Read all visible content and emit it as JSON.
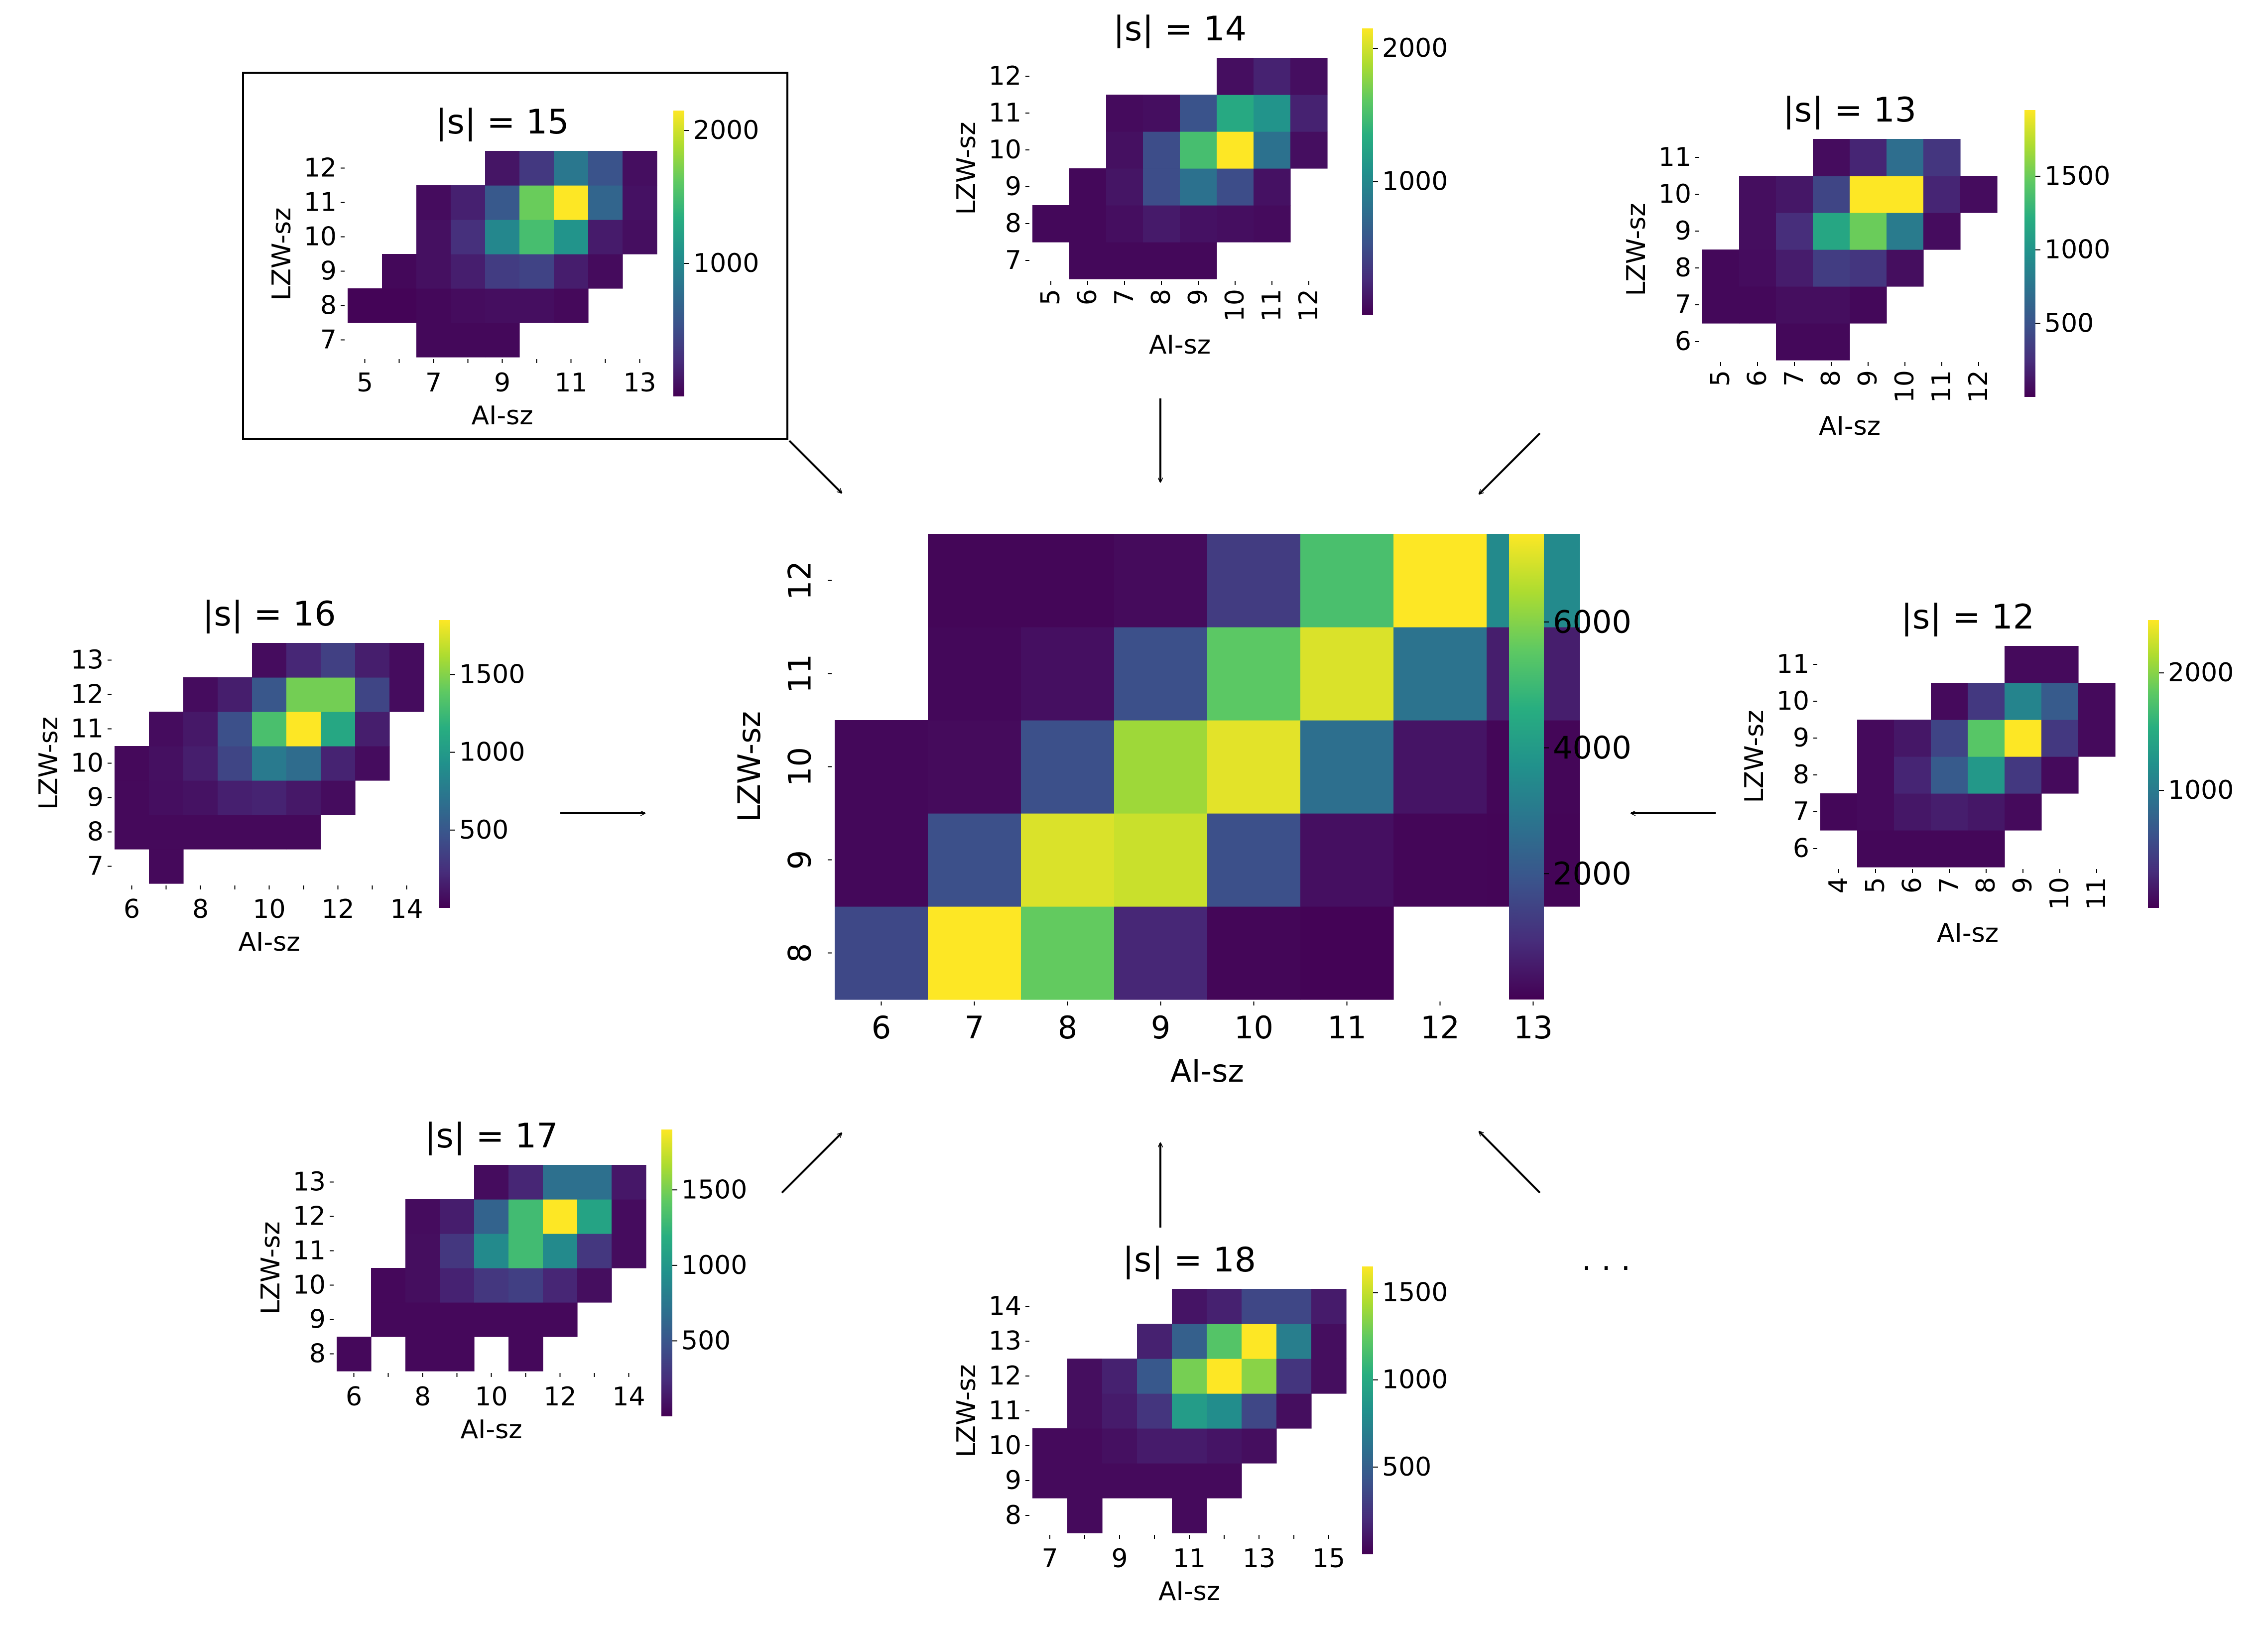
{
  "colors": {
    "low": "#440154",
    "mid": "#21918c",
    "high": "#fde725",
    "arrow": "#000000"
  },
  "ellipsis": ". . .",
  "chart_data": [
    {
      "id": "main",
      "type": "heatmap",
      "title": "",
      "xlabel": "AI-sz",
      "ylabel": "LZW-sz",
      "x_categories": [
        6,
        7,
        8,
        9,
        10,
        11,
        12,
        13
      ],
      "y_categories": [
        8,
        9,
        10,
        11,
        12
      ],
      "colorbar": {
        "vmin": 0,
        "vmax": 7400,
        "ticks": [
          2000,
          4000,
          6000
        ]
      },
      "values": [
        [
          1600,
          7400,
          5600,
          800,
          100,
          50,
          null,
          null
        ],
        [
          150,
          1800,
          7000,
          6800,
          1800,
          300,
          100,
          80
        ],
        [
          150,
          200,
          1800,
          6300,
          7100,
          2700,
          400,
          100
        ],
        [
          null,
          150,
          300,
          1800,
          5500,
          7000,
          2800,
          600
        ],
        [
          null,
          100,
          100,
          200,
          1300,
          5200,
          7400,
          3500
        ]
      ]
    },
    {
      "id": "s15",
      "type": "heatmap",
      "title": "|s| = 15",
      "xlabel": "AI-sz",
      "ylabel": "LZW-sz",
      "x_categories": [
        5,
        6,
        7,
        8,
        9,
        10,
        11,
        12,
        13
      ],
      "x_tick_labels": [
        "5",
        "",
        "7",
        "",
        "9",
        "",
        "11",
        "",
        "13"
      ],
      "y_categories": [
        7,
        8,
        9,
        10,
        11,
        12
      ],
      "colorbar": {
        "vmin": 0,
        "vmax": 2150,
        "ticks": [
          1000,
          2000
        ]
      },
      "values": [
        [
          null,
          null,
          40,
          40,
          40,
          null,
          null,
          null,
          null
        ],
        [
          20,
          20,
          40,
          70,
          80,
          80,
          50,
          null,
          null
        ],
        [
          null,
          40,
          90,
          180,
          380,
          430,
          170,
          60,
          null
        ],
        [
          null,
          null,
          90,
          290,
          990,
          1500,
          1100,
          160,
          80
        ],
        [
          null,
          null,
          70,
          190,
          600,
          1650,
          2150,
          700,
          100
        ],
        [
          null,
          null,
          null,
          null,
          120,
          350,
          850,
          550,
          80
        ]
      ]
    },
    {
      "id": "s14",
      "type": "heatmap",
      "title": "|s| = 14",
      "xlabel": "AI-sz",
      "ylabel": "LZW-sz",
      "x_categories": [
        5,
        6,
        7,
        8,
        9,
        10,
        11,
        12
      ],
      "y_categories": [
        7,
        8,
        9,
        10,
        11,
        12
      ],
      "colorbar": {
        "vmin": 0,
        "vmax": 2150,
        "ticks": [
          1000,
          2000
        ]
      },
      "values": [
        [
          null,
          40,
          40,
          40,
          40,
          null,
          null,
          null
        ],
        [
          40,
          40,
          80,
          150,
          100,
          80,
          60,
          null
        ],
        [
          null,
          40,
          120,
          500,
          800,
          500,
          100,
          null
        ],
        [
          null,
          null,
          90,
          500,
          1500,
          2150,
          800,
          80
        ],
        [
          null,
          null,
          60,
          80,
          550,
          1300,
          1100,
          200
        ],
        [
          null,
          null,
          null,
          null,
          null,
          80,
          200,
          80
        ]
      ]
    },
    {
      "id": "s13",
      "type": "heatmap",
      "title": "|s| = 13",
      "xlabel": "AI-sz",
      "ylabel": "LZW-sz",
      "x_categories": [
        5,
        6,
        7,
        8,
        9,
        10,
        11,
        12
      ],
      "y_categories": [
        6,
        7,
        8,
        9,
        10,
        11
      ],
      "colorbar": {
        "vmin": 0,
        "vmax": 1950,
        "ticks": [
          500,
          1000,
          1500
        ]
      },
      "values": [
        [
          null,
          null,
          40,
          40,
          null,
          null,
          null,
          null
        ],
        [
          40,
          40,
          70,
          70,
          40,
          null,
          null,
          null
        ],
        [
          40,
          60,
          150,
          350,
          300,
          70,
          null,
          null
        ],
        [
          null,
          70,
          250,
          1150,
          1500,
          800,
          60,
          null
        ],
        [
          null,
          70,
          120,
          400,
          1950,
          1950,
          200,
          60
        ],
        [
          null,
          null,
          null,
          60,
          200,
          700,
          300,
          null
        ]
      ]
    },
    {
      "id": "s16",
      "type": "heatmap",
      "title": "|s| = 16",
      "xlabel": "AI-sz",
      "ylabel": "LZW-sz",
      "x_categories": [
        6,
        7,
        8,
        9,
        10,
        11,
        12,
        13,
        14
      ],
      "x_tick_labels": [
        "6",
        "",
        "8",
        "",
        "10",
        "",
        "12",
        "",
        "14"
      ],
      "y_categories": [
        7,
        8,
        9,
        10,
        11,
        12,
        13
      ],
      "colorbar": {
        "vmin": 0,
        "vmax": 1850,
        "ticks": [
          500,
          1000,
          1500
        ]
      },
      "values": [
        [
          null,
          40,
          null,
          null,
          null,
          null,
          null,
          null,
          null
        ],
        [
          40,
          40,
          40,
          40,
          40,
          40,
          null,
          null,
          null
        ],
        [
          40,
          70,
          90,
          160,
          180,
          120,
          60,
          null,
          null
        ],
        [
          40,
          80,
          150,
          380,
          750,
          650,
          180,
          60,
          null
        ],
        [
          null,
          60,
          120,
          450,
          1300,
          1850,
          1100,
          150,
          null
        ],
        [
          null,
          null,
          60,
          150,
          500,
          1450,
          1450,
          380,
          60
        ],
        [
          null,
          null,
          null,
          null,
          60,
          200,
          350,
          150,
          60
        ]
      ]
    },
    {
      "id": "s12",
      "type": "heatmap",
      "title": "|s| = 12",
      "xlabel": "AI-sz",
      "ylabel": "LZW-sz",
      "x_categories": [
        4,
        5,
        6,
        7,
        8,
        9,
        10,
        11
      ],
      "y_categories": [
        6,
        7,
        8,
        9,
        10,
        11
      ],
      "colorbar": {
        "vmin": 0,
        "vmax": 2450,
        "ticks": [
          1000,
          2000
        ]
      },
      "values": [
        [
          null,
          40,
          40,
          40,
          40,
          null,
          null,
          null
        ],
        [
          40,
          60,
          150,
          200,
          150,
          60,
          null,
          null
        ],
        [
          null,
          60,
          250,
          700,
          1300,
          400,
          60,
          null
        ],
        [
          null,
          60,
          150,
          500,
          1800,
          2450,
          400,
          60
        ],
        [
          null,
          null,
          null,
          60,
          400,
          1100,
          700,
          60
        ],
        [
          null,
          null,
          null,
          null,
          null,
          60,
          60,
          null
        ]
      ]
    },
    {
      "id": "s17",
      "type": "heatmap",
      "title": "|s| = 17",
      "xlabel": "AI-sz",
      "ylabel": "LZW-sz",
      "x_categories": [
        6,
        7,
        8,
        9,
        10,
        11,
        12,
        13,
        14
      ],
      "x_tick_labels": [
        "6",
        "",
        "8",
        "",
        "10",
        "",
        "12",
        "",
        "14"
      ],
      "y_categories": [
        8,
        9,
        10,
        11,
        12,
        13
      ],
      "colorbar": {
        "vmin": 0,
        "vmax": 1900,
        "ticks": [
          500,
          1000,
          1500
        ]
      },
      "values": [
        [
          40,
          null,
          40,
          40,
          null,
          40,
          null,
          null,
          null
        ],
        [
          null,
          40,
          40,
          40,
          40,
          40,
          40,
          null,
          null
        ],
        [
          null,
          40,
          70,
          180,
          300,
          350,
          200,
          70,
          null
        ],
        [
          null,
          null,
          70,
          300,
          900,
          1300,
          900,
          300,
          60
        ],
        [
          null,
          null,
          60,
          150,
          600,
          1300,
          1900,
          1100,
          60
        ],
        [
          null,
          null,
          null,
          null,
          60,
          200,
          700,
          700,
          120
        ]
      ]
    },
    {
      "id": "s18",
      "type": "heatmap",
      "title": "|s| = 18",
      "xlabel": "AI-sz",
      "ylabel": "LZW-sz",
      "x_categories": [
        7,
        8,
        9,
        10,
        11,
        12,
        13,
        14,
        15
      ],
      "x_tick_labels": [
        "7",
        "",
        "9",
        "",
        "11",
        "",
        "13",
        "",
        "15"
      ],
      "y_categories": [
        8,
        9,
        10,
        11,
        12,
        13,
        14
      ],
      "colorbar": {
        "vmin": 0,
        "vmax": 1650,
        "ticks": [
          500,
          1000,
          1500
        ]
      },
      "values": [
        [
          null,
          40,
          null,
          null,
          40,
          null,
          null,
          null,
          null
        ],
        [
          40,
          40,
          40,
          40,
          40,
          40,
          null,
          null,
          null
        ],
        [
          40,
          40,
          70,
          120,
          120,
          90,
          60,
          null,
          null
        ],
        [
          null,
          60,
          120,
          250,
          900,
          800,
          350,
          60,
          null
        ],
        [
          null,
          60,
          150,
          450,
          1300,
          1650,
          1350,
          250,
          60
        ],
        [
          null,
          null,
          null,
          150,
          500,
          1200,
          1650,
          700,
          60
        ],
        [
          null,
          null,
          null,
          null,
          90,
          150,
          350,
          350,
          120
        ]
      ]
    }
  ]
}
